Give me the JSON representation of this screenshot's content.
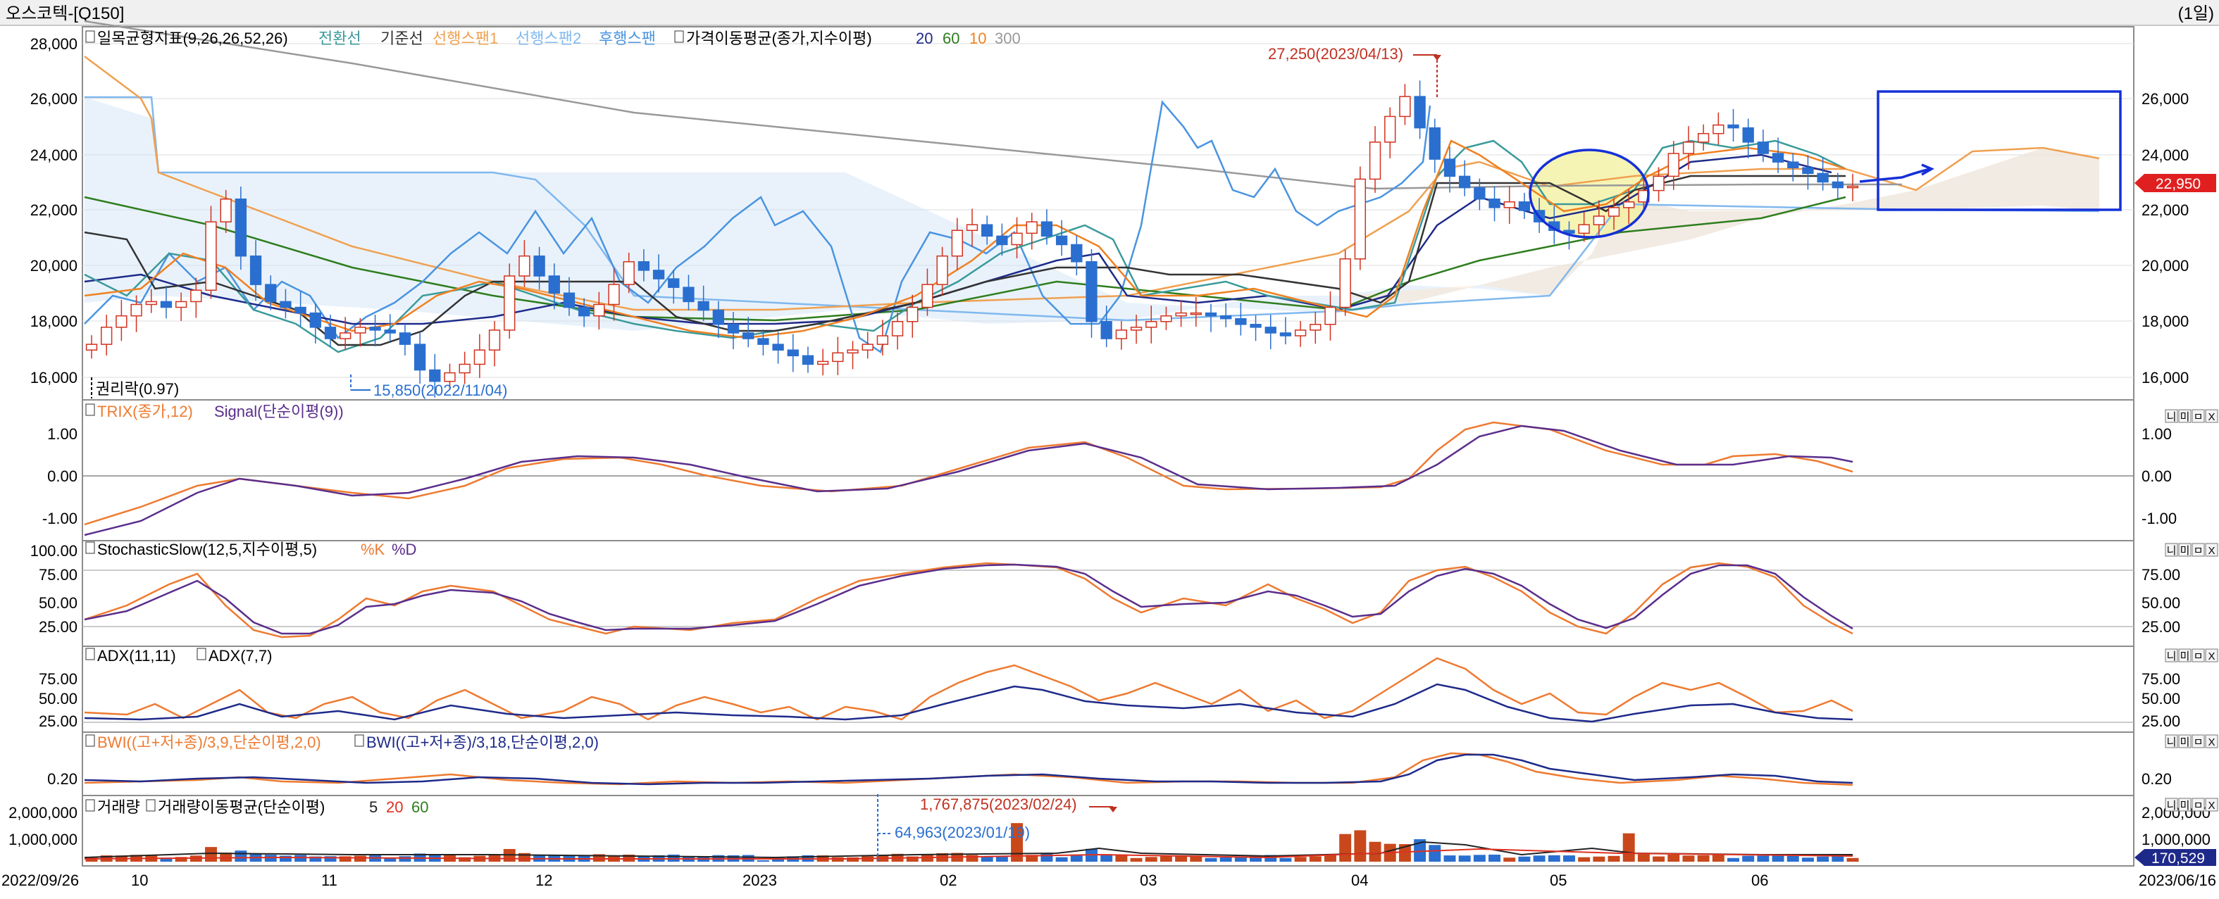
{
  "window": {
    "title": "오스코텍-[Q150]",
    "period_label": "(1일)"
  },
  "colors": {
    "up": "#d2321e",
    "down": "#2a6fcf",
    "conversion": "#3a9a9a",
    "base": "#333333",
    "span_a": "#f0a050",
    "span_b": "#80b8ee",
    "lagging": "#4a94e0",
    "ma20": "#1e2a8a",
    "ma60": "#2e7d1e",
    "ma10": "#f08020",
    "ma300": "#999999",
    "orange": "#ee7a30",
    "purple": "#5a2e8c",
    "navy": "#1e2a8a",
    "blue_box": "#1530d8",
    "price_tag": "#e02020"
  },
  "main_panel": {
    "legend": {
      "ichimoku": "일목균형지표(9,26,26,52,26)",
      "conversion": "전환선",
      "base": "기준선",
      "span_a": "선행스팬1",
      "span_b": "선행스팬2",
      "lagging": "후행스팬",
      "ma": "가격이동평균(종가,지수이평)",
      "ma20": "20",
      "ma60": "60",
      "ma10": "10",
      "ma300": "300"
    },
    "annotations": {
      "high": "27,250(2023/04/13)",
      "low": "15,850(2022/11/04)",
      "rights": "권리락(0.97)"
    },
    "y_ticks_left": [
      "28,000",
      "26,000",
      "24,000",
      "22,000",
      "20,000",
      "18,000",
      "16,000"
    ],
    "y_ticks_right": [
      "26,000",
      "24,000",
      "22,000",
      "20,000",
      "18,000",
      "16,000"
    ],
    "last_price": "22,950"
  },
  "trix_panel": {
    "legend": {
      "trix": "TRIX(종가,12)",
      "signal": "Signal(단순이평(9))"
    },
    "y_ticks_left": [
      "1.00",
      "0.00",
      "-1.00"
    ],
    "y_ticks_right": [
      "1.00",
      "0.00",
      "-1.00"
    ]
  },
  "stoch_panel": {
    "legend": {
      "name": "StochasticSlow(12,5,지수이평,5)",
      "k": "%K",
      "d": "%D"
    },
    "y_ticks_left": [
      "100.00",
      "75.00",
      "50.00",
      "25.00"
    ],
    "y_ticks_right": [
      "75.00",
      "50.00",
      "25.00"
    ]
  },
  "adx_panel": {
    "legend": {
      "a": "ADX(11,11)",
      "b": "ADX(7,7)"
    },
    "y_ticks_left": [
      "75.00",
      "50.00",
      "25.00"
    ],
    "y_ticks_right": [
      "75.00",
      "50.00",
      "25.00"
    ]
  },
  "bwi_panel": {
    "legend": {
      "a": "BWI((고+저+종)/3,9,단순이평,2,0)",
      "b": "BWI((고+저+종)/3,18,단순이평,2,0)"
    },
    "y_ticks_left": [
      "0.20"
    ],
    "y_ticks_right": [
      "0.20"
    ]
  },
  "volume_panel": {
    "legend": {
      "vol": "거래량",
      "ma": "거래량이동평균(단순이평)",
      "m5": "5",
      "m20": "20",
      "m60": "60"
    },
    "annotations": {
      "max": "1,767,875(2023/02/24)",
      "min": "64,963(2023/01/19)"
    },
    "y_ticks_left": [
      "2,000,000",
      "1,000,000"
    ],
    "y_ticks_right": [
      "2,000,000",
      "1,000,000"
    ],
    "last_volume": "170,529"
  },
  "panel_buttons": [
    "니",
    "미",
    "ㅁ",
    "X"
  ],
  "x_axis": {
    "labels": [
      "2022/09/26",
      "10",
      "11",
      "12",
      "2023",
      "02",
      "03",
      "04",
      "05",
      "06",
      "2023/06/16"
    ]
  },
  "chart_data": {
    "type": "candlestick",
    "x_range": [
      "2022/09/26",
      "2023/06/16"
    ],
    "ylim": [
      15500,
      28500
    ],
    "high": {
      "value": 27250,
      "date": "2023/04/13"
    },
    "low": {
      "value": 15850,
      "date": "2022/11/04"
    },
    "last": 22950,
    "volume_max": {
      "value": 1767875,
      "date": "2023/02/24"
    },
    "volume_min": {
      "value": 64963,
      "date": "2023/01/19"
    },
    "last_volume": 170529,
    "closes": [
      17400,
      18000,
      18400,
      18800,
      18900,
      18700,
      18900,
      19300,
      21700,
      22500,
      20500,
      19500,
      18900,
      18700,
      18500,
      18000,
      17600,
      17800,
      18000,
      17900,
      17800,
      17400,
      16500,
      16100,
      16400,
      16700,
      17200,
      17900,
      19800,
      20500,
      19800,
      19200,
      18700,
      18400,
      18800,
      19500,
      20300,
      20000,
      19700,
      19400,
      18900,
      18600,
      18100,
      17800,
      17600,
      17400,
      17200,
      17000,
      16700,
      16800,
      17100,
      17200,
      17400,
      17700,
      18200,
      18700,
      19500,
      20500,
      21400,
      21600,
      21200,
      20900,
      21300,
      21700,
      21200,
      20900,
      20300,
      18200,
      17600,
      17900,
      18000,
      18200,
      18400,
      18500,
      18500,
      18400,
      18300,
      18100,
      18000,
      17800,
      17700,
      17900,
      18100,
      18700,
      20400,
      23200,
      24500,
      25400,
      26100,
      25000,
      23900,
      23300,
      22900,
      22500,
      22200,
      22400,
      22100,
      21700,
      21400,
      21300,
      21600,
      21900,
      22200,
      22400,
      22800,
      23300,
      24100,
      24500,
      24800,
      25100,
      25000,
      24500,
      24100,
      23800,
      23600,
      23400,
      23100,
      22900,
      22950
    ]
  }
}
